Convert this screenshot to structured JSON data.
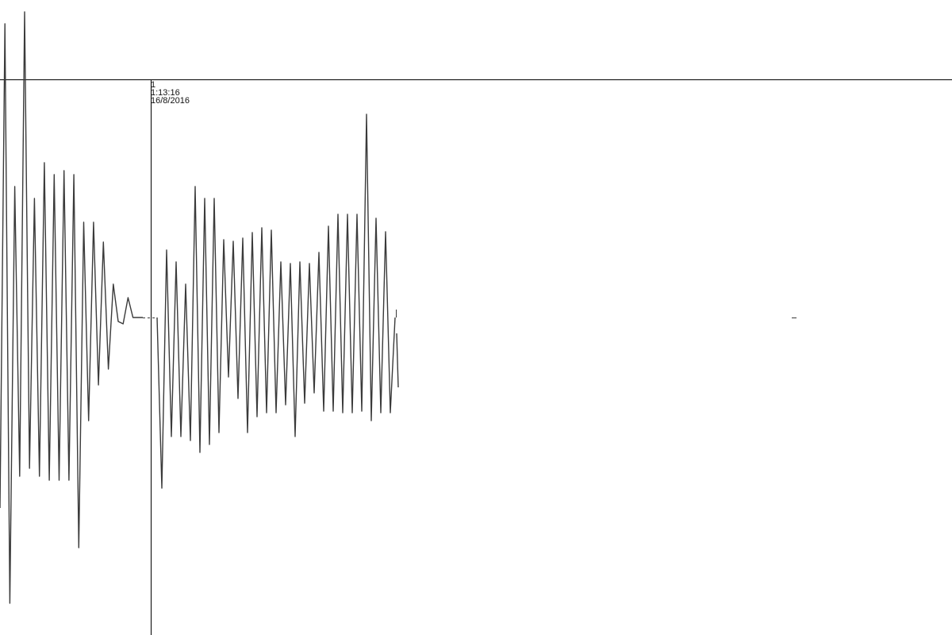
{
  "chart_data": {
    "type": "line",
    "title": "",
    "xlabel": "",
    "ylabel": "",
    "grid": false,
    "legend": "none",
    "line_color": "#3a3a3a",
    "axis_color": "#000000",
    "marker": {
      "label": "1",
      "time": "1:13:16",
      "date": "16/8/2016"
    },
    "series": [
      {
        "values": [
          -240,
          370,
          -360,
          165,
          -200,
          385,
          -190,
          150,
          -200,
          195,
          -205,
          180,
          -205,
          185,
          -205,
          180,
          -290,
          120,
          -130,
          120,
          -85,
          95,
          -65,
          42,
          -5,
          -8,
          25,
          0,
          0,
          0
        ]
      },
      {
        "values": [
          0,
          -215,
          85,
          -150,
          70,
          -150,
          42,
          -155,
          165,
          -170,
          150,
          -160,
          150,
          -145,
          98,
          -75,
          96,
          -102,
          100,
          -145,
          107,
          -125,
          113,
          -120,
          110,
          -120,
          70,
          -110,
          68,
          -150,
          70,
          -108,
          68,
          -95,
          82,
          -118,
          115,
          -118,
          130,
          -120,
          130,
          -120,
          130,
          -118,
          256,
          -130,
          125,
          -120,
          108,
          -120,
          0
        ]
      }
    ]
  }
}
